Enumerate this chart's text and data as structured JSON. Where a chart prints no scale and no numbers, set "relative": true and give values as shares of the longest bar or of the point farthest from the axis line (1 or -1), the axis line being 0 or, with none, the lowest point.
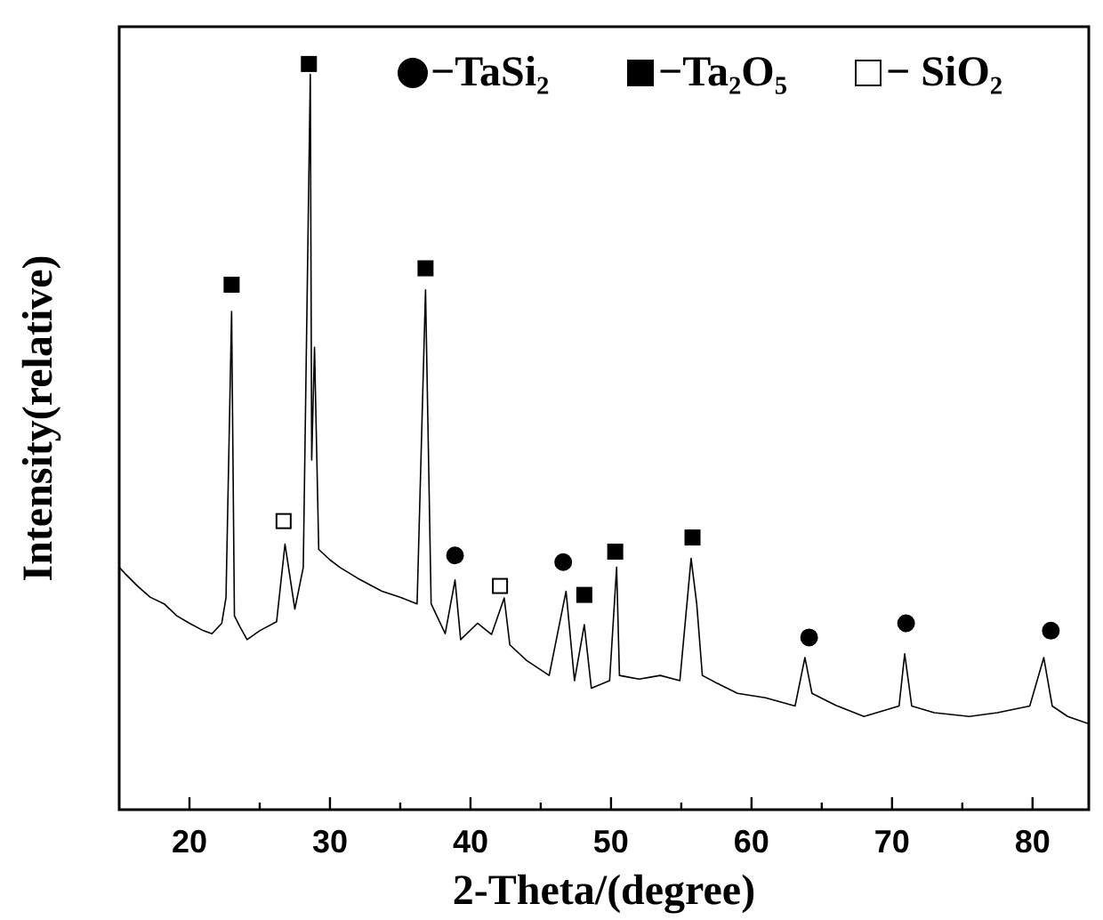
{
  "chart_data": {
    "type": "line",
    "xlabel": "2-Theta/(degree)",
    "ylabel": "Intensity(relative)",
    "relative": true,
    "tick_labels": "x",
    "grid": false,
    "legend": "top right",
    "xlim": [
      15,
      84
    ],
    "xticks": [
      20,
      {
        "value": 25,
        "label": null
      },
      30,
      {
        "value": 35,
        "label": null
      },
      40,
      {
        "value": 45,
        "label": null
      },
      50,
      {
        "value": 55,
        "label": null
      },
      60,
      {
        "value": 65,
        "label": null
      },
      70,
      {
        "value": 75,
        "label": null
      },
      80
    ],
    "series": [
      {
        "color": "#000000",
        "marker": "none",
        "x": [
          15,
          15.4,
          16.3,
          17.2,
          18.2,
          19.1,
          20.0,
          21.0,
          21.6,
          22.3,
          22.6,
          23.0,
          23.2,
          23.6,
          24.1,
          25.0,
          26.2,
          26.8,
          27.5,
          28.1,
          28.6,
          28.7,
          28.9,
          29.2,
          30.0,
          30.7,
          32.0,
          33.7,
          35.0,
          36.2,
          36.8,
          37.2,
          38.2,
          38.9,
          39.3,
          40.5,
          41.5,
          42.4,
          42.8,
          44.0,
          45.6,
          46.8,
          47.4,
          48.1,
          48.6,
          49.9,
          50.4,
          50.6,
          52.0,
          53.5,
          54.9,
          55.7,
          56.1,
          56.5,
          57.5,
          59.0,
          61.0,
          63.1,
          63.8,
          64.3,
          66.0,
          68.0,
          70.5,
          70.9,
          71.4,
          73.0,
          75.5,
          77.5,
          79.8,
          80.8,
          81.4,
          82.5,
          84.0
        ],
        "values": [
          0.325,
          0.317,
          0.3,
          0.285,
          0.276,
          0.26,
          0.25,
          0.24,
          0.236,
          0.25,
          0.284,
          0.668,
          0.26,
          0.245,
          0.228,
          0.24,
          0.252,
          0.356,
          0.269,
          0.325,
          0.986,
          0.469,
          0.62,
          0.349,
          0.335,
          0.325,
          0.31,
          0.293,
          0.285,
          0.276,
          0.697,
          0.276,
          0.236,
          0.308,
          0.228,
          0.25,
          0.235,
          0.284,
          0.221,
          0.2,
          0.18,
          0.293,
          0.173,
          0.248,
          0.163,
          0.173,
          0.325,
          0.18,
          0.175,
          0.18,
          0.173,
          0.337,
          0.276,
          0.18,
          0.17,
          0.156,
          0.15,
          0.139,
          0.204,
          0.156,
          0.14,
          0.125,
          0.139,
          0.209,
          0.139,
          0.13,
          0.125,
          0.13,
          0.139,
          0.204,
          0.139,
          0.125,
          0.115
        ]
      },
      {
        "type": "scatter",
        "name": "−TaSi₂",
        "color": "#000000",
        "marker": "circle",
        "x": [
          38.9,
          46.6,
          64.1,
          71.0,
          81.3
        ],
        "values": [
          0.341,
          0.332,
          0.231,
          0.25,
          0.24
        ]
      },
      {
        "type": "scatter",
        "name": "−Ta₂O₅",
        "color": "#000000",
        "marker": "square",
        "x": [
          23.0,
          28.5,
          36.8,
          48.1,
          50.3,
          55.8
        ],
        "values": [
          0.704,
          1.0,
          0.726,
          0.288,
          0.346,
          0.365
        ]
      },
      {
        "type": "scatter",
        "name": "− SiO₂",
        "color": "#ffffff",
        "marker": "square",
        "x": [
          26.7,
          42.1
        ],
        "values": [
          0.387,
          0.3
        ]
      }
    ]
  }
}
